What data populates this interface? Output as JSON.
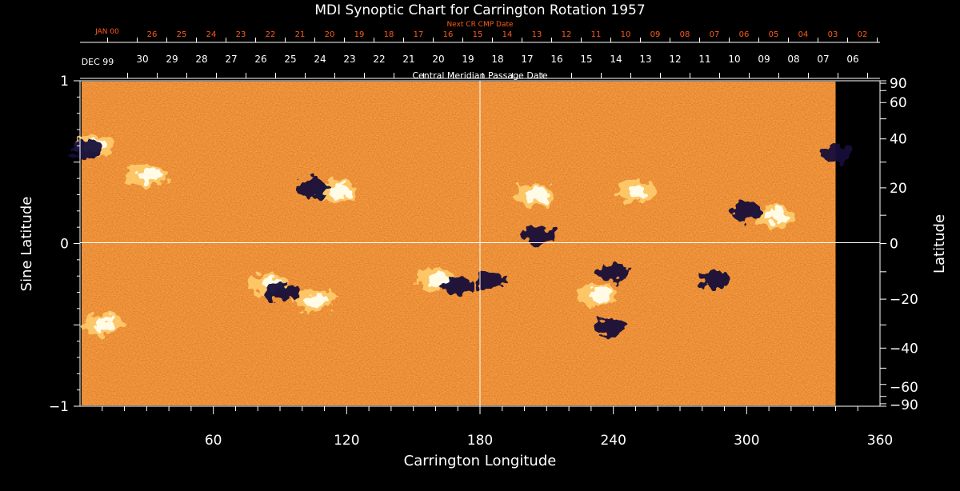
{
  "chart_data": {
    "type": "heatmap",
    "title": "MDI Synoptic Chart for Carrington Rotation 1957",
    "xlabel": "Carrington Longitude",
    "ylabel_left": "Sine Latitude",
    "ylabel_right": "Latitude",
    "xlim": [
      0,
      360
    ],
    "ylim": [
      -1,
      1
    ],
    "x_ticks": [
      60,
      120,
      180,
      240,
      300,
      360
    ],
    "y_ticks_left": [
      -1,
      0,
      1
    ],
    "y_ticks_right": [
      90,
      60,
      40,
      20,
      0,
      -20,
      -40,
      -60,
      -90
    ],
    "top_axis_title": "Central Meridian Passage Date",
    "top_axis_month_start": "DEC 99",
    "top_axis_days": [
      "30",
      "29",
      "28",
      "27",
      "26",
      "25",
      "24",
      "23",
      "22",
      "21",
      "20",
      "19",
      "18",
      "17",
      "16",
      "15",
      "14",
      "13",
      "12",
      "11",
      "10",
      "09",
      "08",
      "07",
      "06"
    ],
    "next_axis_title": "Next CR CMP Date",
    "next_axis_month_start": "JAN 00",
    "next_axis_days": [
      "26",
      "25",
      "24",
      "23",
      "22",
      "21",
      "20",
      "19",
      "18",
      "17",
      "16",
      "15",
      "14",
      "13",
      "12",
      "11",
      "10",
      "09",
      "08",
      "07",
      "06",
      "05",
      "04",
      "03",
      "02"
    ],
    "grid_lines": {
      "x": 180,
      "y": 0
    },
    "data_coverage_lon": [
      0,
      340
    ],
    "colormap": {
      "background": "#e8561a",
      "negative": "#14103a",
      "positive": "#fffbe6",
      "bright": "#ffd070"
    },
    "positive_regions": [
      {
        "lon": 6,
        "sinlat": 0.6
      },
      {
        "lon": 30,
        "sinlat": 0.42
      },
      {
        "lon": 115,
        "sinlat": 0.32
      },
      {
        "lon": 205,
        "sinlat": 0.3
      },
      {
        "lon": 250,
        "sinlat": 0.32
      },
      {
        "lon": 312,
        "sinlat": 0.17
      },
      {
        "lon": 85,
        "sinlat": -0.25
      },
      {
        "lon": 105,
        "sinlat": -0.35
      },
      {
        "lon": 160,
        "sinlat": -0.22
      },
      {
        "lon": 233,
        "sinlat": -0.32
      },
      {
        "lon": 10,
        "sinlat": -0.5
      }
    ],
    "negative_regions": [
      {
        "lon": 3,
        "sinlat": 0.58
      },
      {
        "lon": 105,
        "sinlat": 0.34
      },
      {
        "lon": 185,
        "sinlat": -0.22
      },
      {
        "lon": 170,
        "sinlat": -0.26
      },
      {
        "lon": 240,
        "sinlat": -0.18
      },
      {
        "lon": 300,
        "sinlat": 0.2
      },
      {
        "lon": 285,
        "sinlat": -0.22
      },
      {
        "lon": 206,
        "sinlat": 0.05
      },
      {
        "lon": 90,
        "sinlat": -0.3
      },
      {
        "lon": 238,
        "sinlat": -0.52
      },
      {
        "lon": 340,
        "sinlat": 0.55
      }
    ]
  }
}
